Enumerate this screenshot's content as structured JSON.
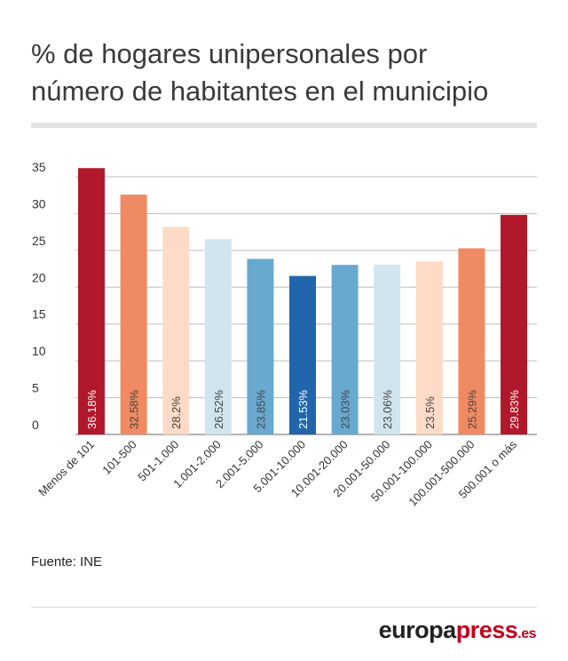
{
  "title_line1": "% de hogares unipersonales por",
  "title_line2": "número de habitantes en el municipio",
  "source": "Fuente: INE",
  "logo": {
    "main": "europa",
    "accent": "press",
    "tld": ".es"
  },
  "chart_data": {
    "type": "bar",
    "categories": [
      "Menos de 101",
      "101-500",
      "501-1.000",
      "1.001-2.000",
      "2.001-5.000",
      "5.001-10.000",
      "10.001-20.000",
      "20.001-50.000",
      "50.001-100.000",
      "100.001-500.000",
      "500.001 o más"
    ],
    "values": [
      36.18,
      32.58,
      28.2,
      26.52,
      23.85,
      21.53,
      23.03,
      23.06,
      23.5,
      25.29,
      29.83
    ],
    "value_labels": [
      "36.18%",
      "32.58%",
      "28.2%",
      "26.52%",
      "23.85%",
      "21.53%",
      "23.03%",
      "23.06%",
      "23.5%",
      "25.29%",
      "29.83%"
    ],
    "colors": [
      "#b2182b",
      "#ef8a62",
      "#fddbc7",
      "#d1e5f0",
      "#67a9cf",
      "#2166ac",
      "#67a9cf",
      "#d1e5f0",
      "#fddbc7",
      "#ef8a62",
      "#b2182b"
    ],
    "label_colors": [
      "#ffffff",
      "#444444",
      "#444444",
      "#444444",
      "#444444",
      "#ffffff",
      "#444444",
      "#444444",
      "#444444",
      "#444444",
      "#ffffff"
    ],
    "yticks": [
      0,
      5,
      10,
      15,
      20,
      25,
      30,
      35
    ],
    "ylim": [
      0,
      35
    ],
    "grid": true,
    "title": "% de hogares unipersonales por número de habitantes en el municipio"
  }
}
